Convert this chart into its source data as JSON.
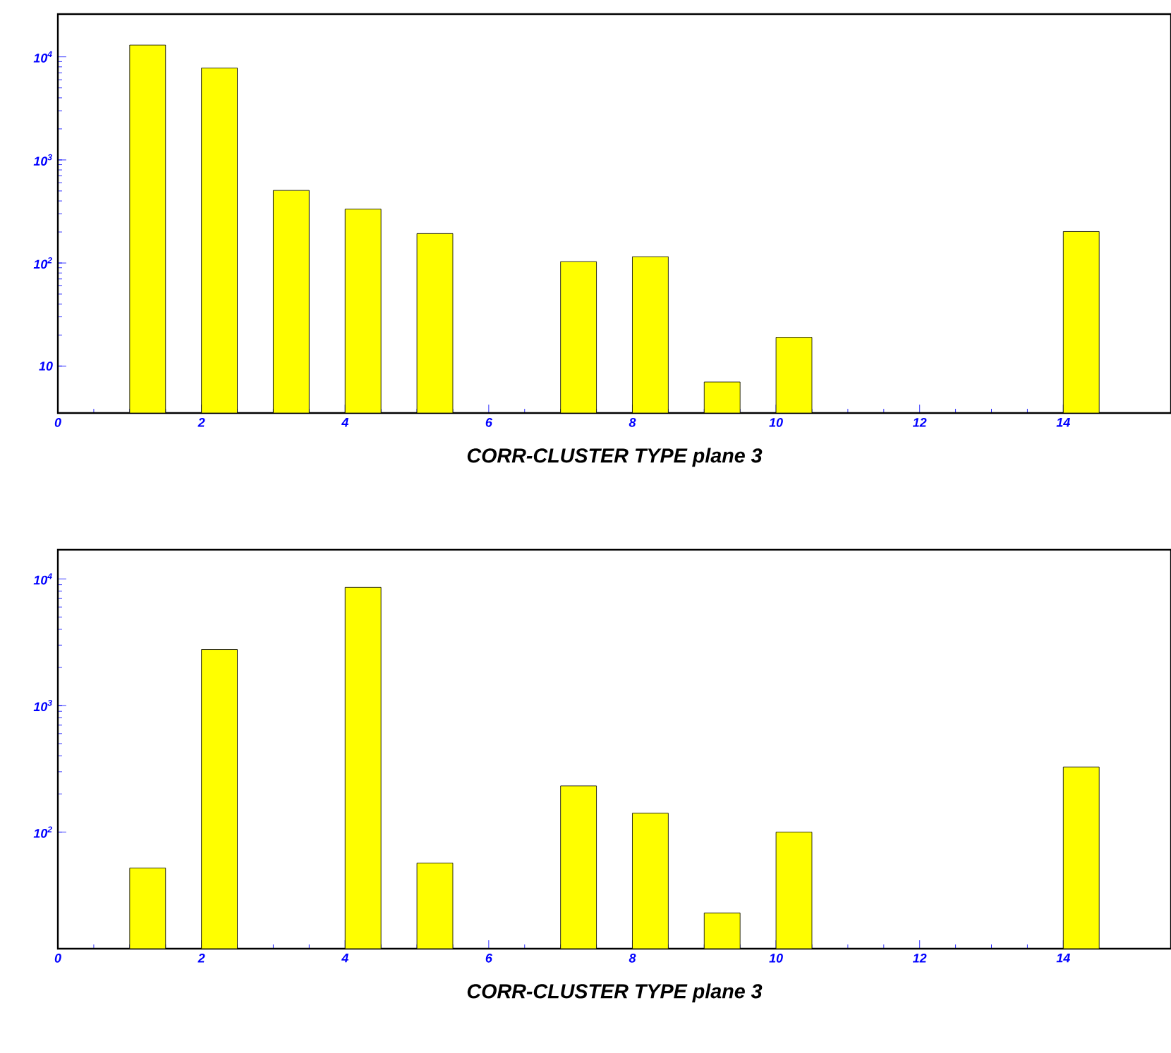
{
  "chart_data": [
    {
      "type": "bar",
      "xlabel": "CORR-CLUSTER TYPE  plane 3",
      "x": [
        1.25,
        2.25,
        3.25,
        4.25,
        5.25,
        6.25,
        7.25,
        8.25,
        9.25,
        10.25,
        11.25,
        12.25,
        13.25,
        14.25
      ],
      "values": [
        13000,
        7800,
        506,
        333,
        193,
        null,
        103,
        115,
        7,
        19,
        null,
        null,
        null,
        202
      ],
      "color": "#ffff00",
      "log": true,
      "xlim": [
        0,
        15.5
      ],
      "ylim": [
        3.5,
        26000
      ],
      "xticks": [
        0,
        2,
        4,
        6,
        8,
        10,
        12,
        14
      ],
      "yticks": [
        {
          "value": 10,
          "label": "10"
        },
        {
          "value": 100,
          "label": "10$^{2}$"
        },
        {
          "value": 1000,
          "label": "10$^{3}$"
        },
        {
          "value": 10000,
          "label": "10$^{4}$"
        }
      ]
    },
    {
      "type": "bar",
      "xlabel": "CORR-CLUSTER TYPE  plane 3",
      "x": [
        1.25,
        2.25,
        3.25,
        4.25,
        5.25,
        6.25,
        7.25,
        8.25,
        9.25,
        10.25,
        11.25,
        12.25,
        13.25,
        14.25
      ],
      "values": [
        52,
        2770,
        null,
        8580,
        57,
        null,
        232,
        141,
        23,
        100,
        null,
        null,
        null,
        327
      ],
      "color": "#ffff00",
      "log": true,
      "xlim": [
        0,
        15.5
      ],
      "ylim": [
        12,
        17000
      ],
      "xticks": [
        0,
        2,
        4,
        6,
        8,
        10,
        12,
        14
      ],
      "yticks": [
        {
          "value": 100,
          "label": "10$^{2}$"
        },
        {
          "value": 1000,
          "label": "10$^{3}$"
        },
        {
          "value": 10000,
          "label": "10$^{4}$"
        }
      ]
    }
  ]
}
